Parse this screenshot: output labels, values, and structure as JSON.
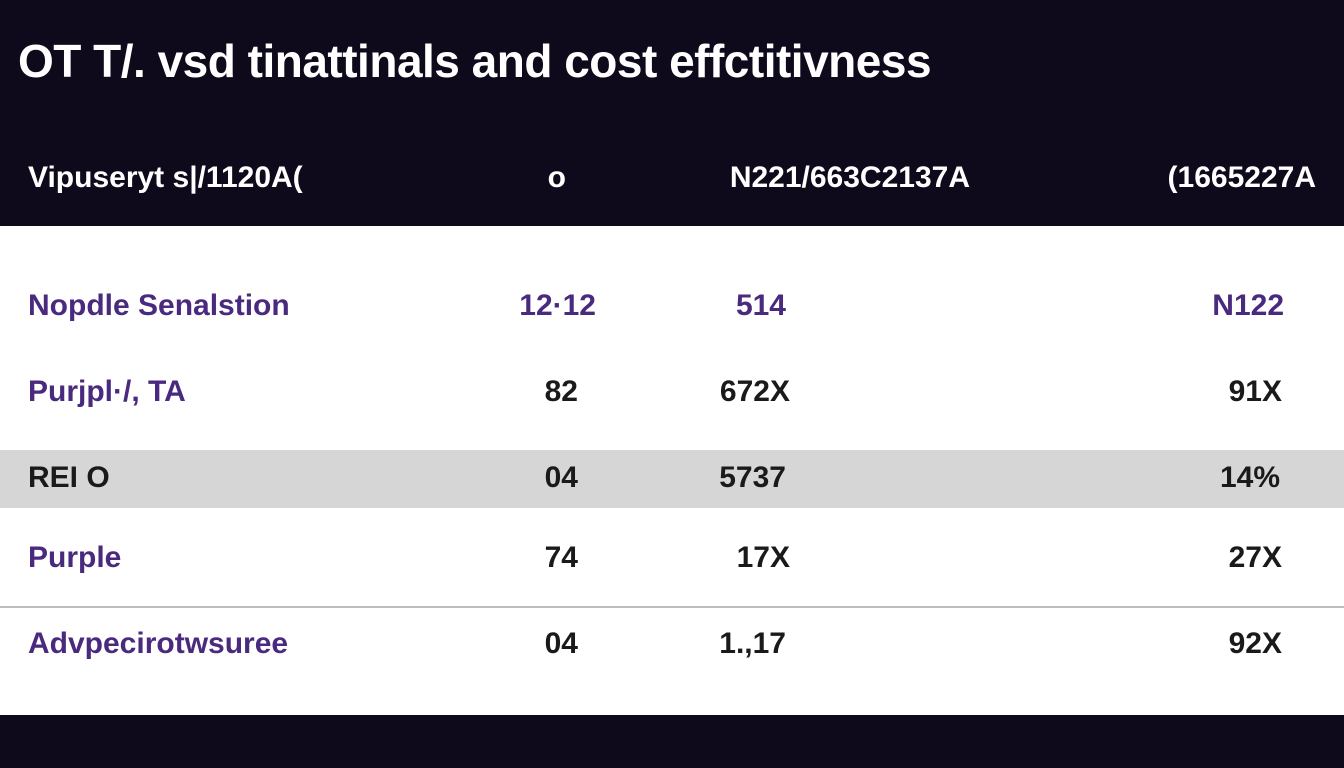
{
  "title": "OT T/. vsd tinattinals and  cost effctitivness",
  "header": {
    "col1": "Vipuseryt s|/1120A(",
    "col2": "o",
    "col3": "N221/663C2137A",
    "col4": "(1665227A"
  },
  "rows": [
    {
      "name": "Nopdle Senalstion",
      "v1": "12·12",
      "v2": "514",
      "v3": "N122"
    },
    {
      "name": "Purjpl·/, TA",
      "v1": "82",
      "v2": "672X",
      "v3": "91X"
    },
    {
      "name": "REI O",
      "v1": "04",
      "v2": "5737",
      "v3": "14%"
    },
    {
      "name": "Purple",
      "v1": "74",
      "v2": "17X",
      "v3": "27X"
    },
    {
      "name": "Advpecirotwsuree",
      "v1": "04",
      "v2": "1.,17",
      "v3": "92X"
    }
  ]
}
